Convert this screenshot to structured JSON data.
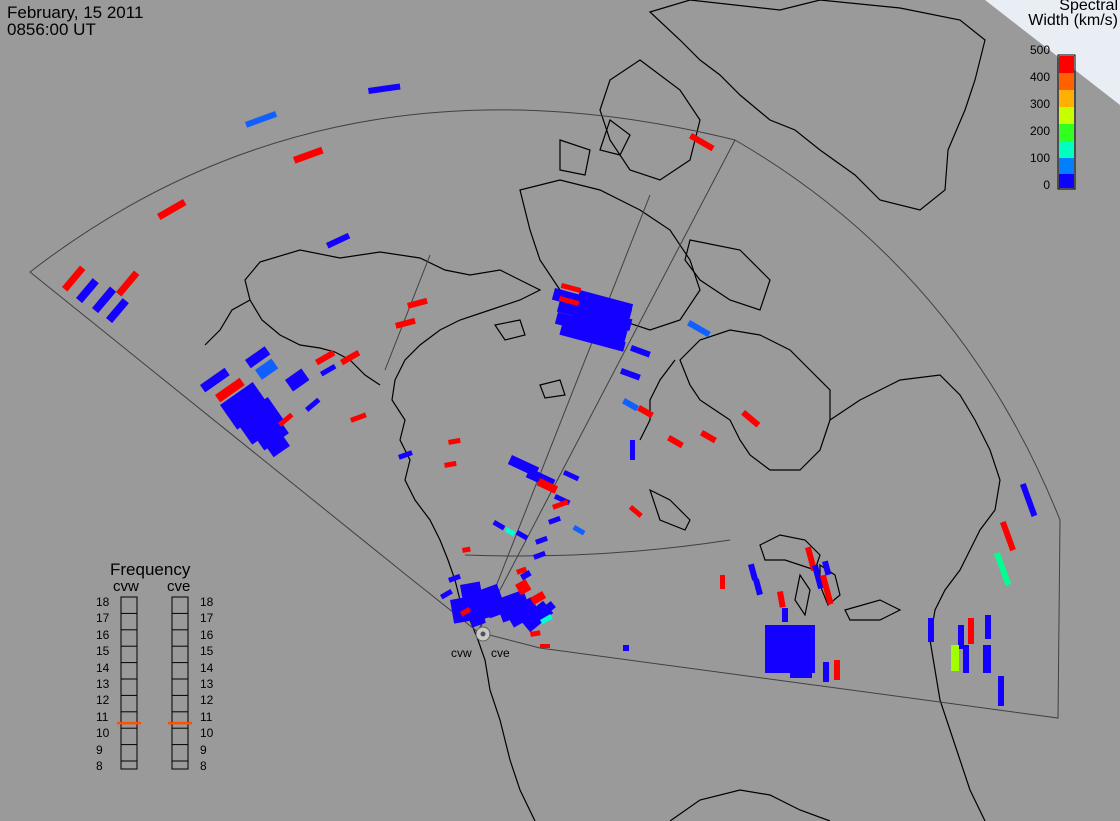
{
  "header": {
    "date": "February, 15 2011",
    "time": "0856:00 UT"
  },
  "legend": {
    "title_line1": "Spectral",
    "title_line2": "Width (km/s)",
    "ticks": [
      "500",
      "400",
      "300",
      "200",
      "100",
      "0"
    ],
    "range": [
      0,
      500
    ],
    "colors": [
      "#0000ff",
      "#0090ff",
      "#00ffd0",
      "#00ff40",
      "#a0ff00",
      "#ffe000",
      "#ff8000",
      "#ff0000"
    ]
  },
  "frequency_panel": {
    "title": "Frequency",
    "radars": [
      {
        "name": "cvw",
        "frequency_mhz": 10.8
      },
      {
        "name": "cve",
        "frequency_mhz": 10.8
      }
    ],
    "scale": [
      "18",
      "17",
      "16",
      "15",
      "14",
      "13",
      "12",
      "11",
      "10",
      "9",
      "8"
    ],
    "marker_color": "#ff5000"
  },
  "sites": [
    {
      "name": "cvw"
    },
    {
      "name": "cve"
    }
  ],
  "colors": {
    "background": "#9a9a9a",
    "coastline": "#000000",
    "fov_line": "#404040",
    "blue": "#1400ff",
    "red": "#ff0000"
  }
}
